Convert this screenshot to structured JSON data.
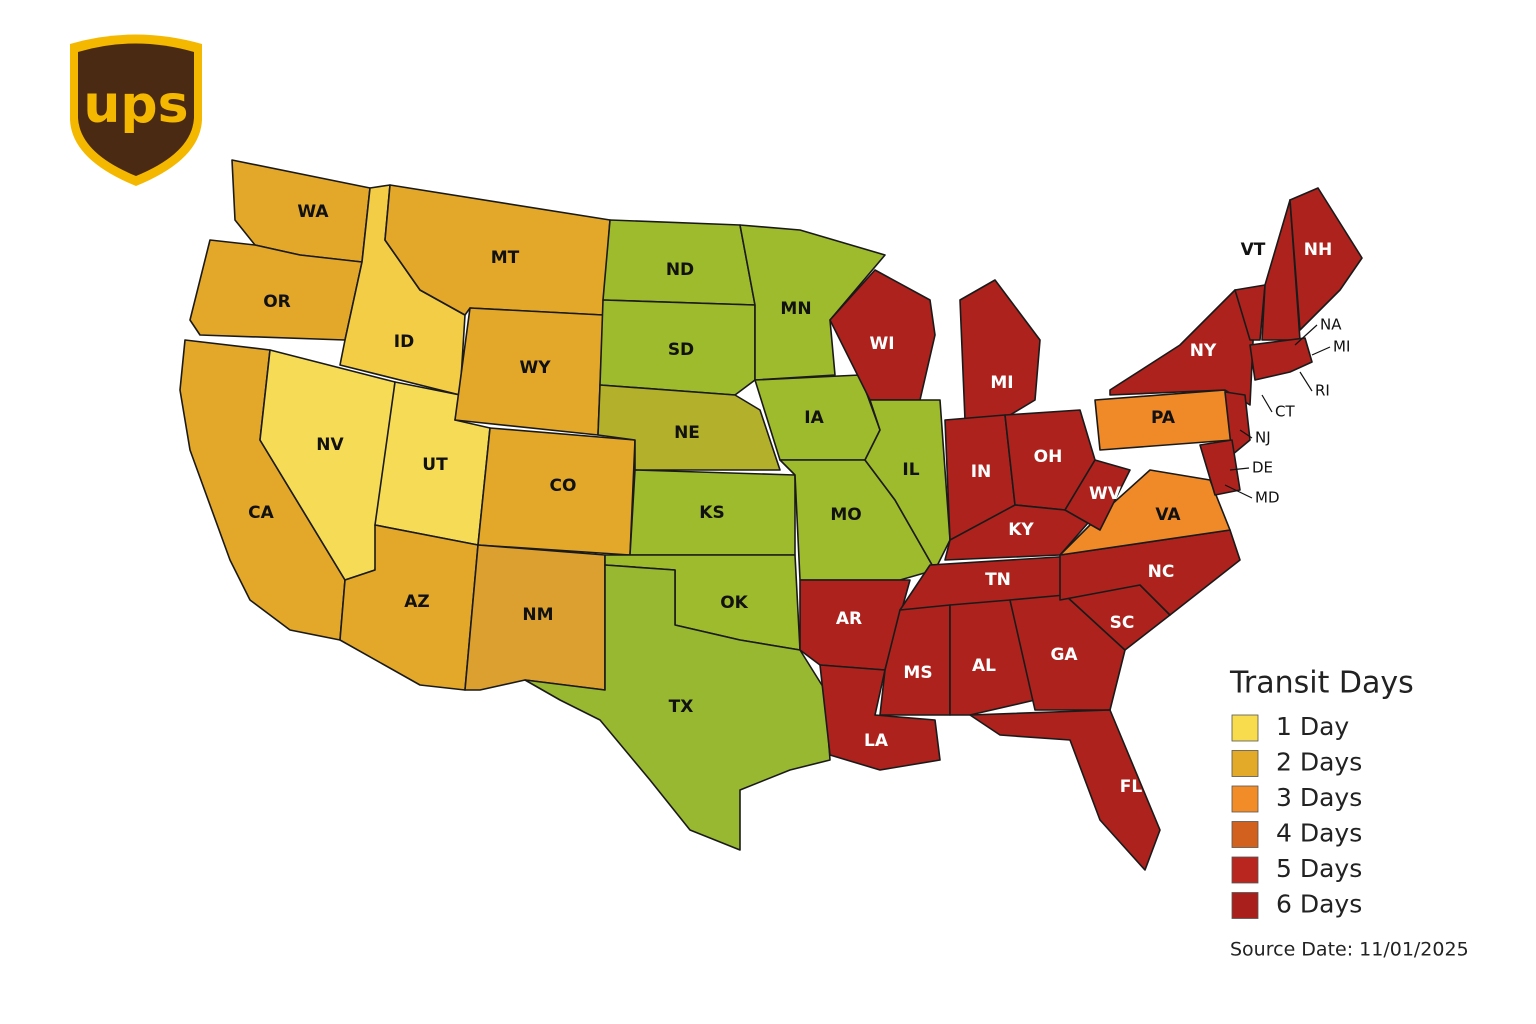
{
  "logo": {
    "text": "ups"
  },
  "map": {
    "states": [
      {
        "label": "WA",
        "color": "#e3a82a"
      },
      {
        "label": "OR",
        "color": "#e3a82a"
      },
      {
        "label": "CA",
        "color": "#e3a82a"
      },
      {
        "label": "ID",
        "color": "#f2cd45"
      },
      {
        "label": "NV",
        "color": "#f6dc56"
      },
      {
        "label": "UT",
        "color": "#f6dc56"
      },
      {
        "label": "AZ",
        "color": "#e3a82a"
      },
      {
        "label": "MT",
        "color": "#e3a82a"
      },
      {
        "label": "WY",
        "color": "#e3a82a"
      },
      {
        "label": "CO",
        "color": "#e3a82a"
      },
      {
        "label": "NM",
        "color": "#dba030"
      },
      {
        "label": "ND",
        "color": "#9dbb2c"
      },
      {
        "label": "SD",
        "color": "#9dbb2c"
      },
      {
        "label": "NE",
        "color": "#b3b02c"
      },
      {
        "label": "KS",
        "color": "#9dbb2c"
      },
      {
        "label": "OK",
        "color": "#9dbb2c"
      },
      {
        "label": "TX",
        "color": "#98b832"
      },
      {
        "label": "MN",
        "color": "#9dbb2c"
      },
      {
        "label": "IA",
        "color": "#9dbb2c"
      },
      {
        "label": "MO",
        "color": "#9dbb2c"
      },
      {
        "label": "AR",
        "color": "#ad221d"
      },
      {
        "label": "LA",
        "color": "#ad221d"
      },
      {
        "label": "WI",
        "color": "#ad221d"
      },
      {
        "label": "IL",
        "color": "#9dbb2c"
      },
      {
        "label": "MI",
        "color": "#ad221d"
      },
      {
        "label": "IN",
        "color": "#ad221d"
      },
      {
        "label": "OH",
        "color": "#ad221d"
      },
      {
        "label": "KY",
        "color": "#ad221d"
      },
      {
        "label": "TN",
        "color": "#ad221d"
      },
      {
        "label": "MS",
        "color": "#ad221d"
      },
      {
        "label": "AL",
        "color": "#ad221d"
      },
      {
        "label": "GA",
        "color": "#ad221d"
      },
      {
        "label": "FL",
        "color": "#ad221d"
      },
      {
        "label": "SC",
        "color": "#ad221d"
      },
      {
        "label": "NC",
        "color": "#ad221d"
      },
      {
        "label": "VA",
        "color": "#f08a28"
      },
      {
        "label": "WV",
        "color": "#ad221d"
      },
      {
        "label": "PA",
        "color": "#f08a28"
      },
      {
        "label": "NY",
        "color": "#ad221d"
      },
      {
        "label": "VT",
        "color": "#ad221d"
      },
      {
        "label": "NH",
        "color": "#ad221d"
      }
    ],
    "small_states": [
      "NA",
      "MI",
      "RI",
      "CT",
      "NJ",
      "DE",
      "MD"
    ]
  },
  "legend": {
    "title": "Transit Days",
    "items": [
      {
        "label": "1 Day",
        "color": "#f8dc4e"
      },
      {
        "label": "2 Days",
        "color": "#e3aa2a"
      },
      {
        "label": "3 Days",
        "color": "#f28c28"
      },
      {
        "label": "4 Days",
        "color": "#d2601f"
      },
      {
        "label": "5 Days",
        "color": "#b8261f"
      },
      {
        "label": "6 Days",
        "color": "#a81f1c"
      }
    ]
  },
  "source": "Source Date: 11/01/2025"
}
